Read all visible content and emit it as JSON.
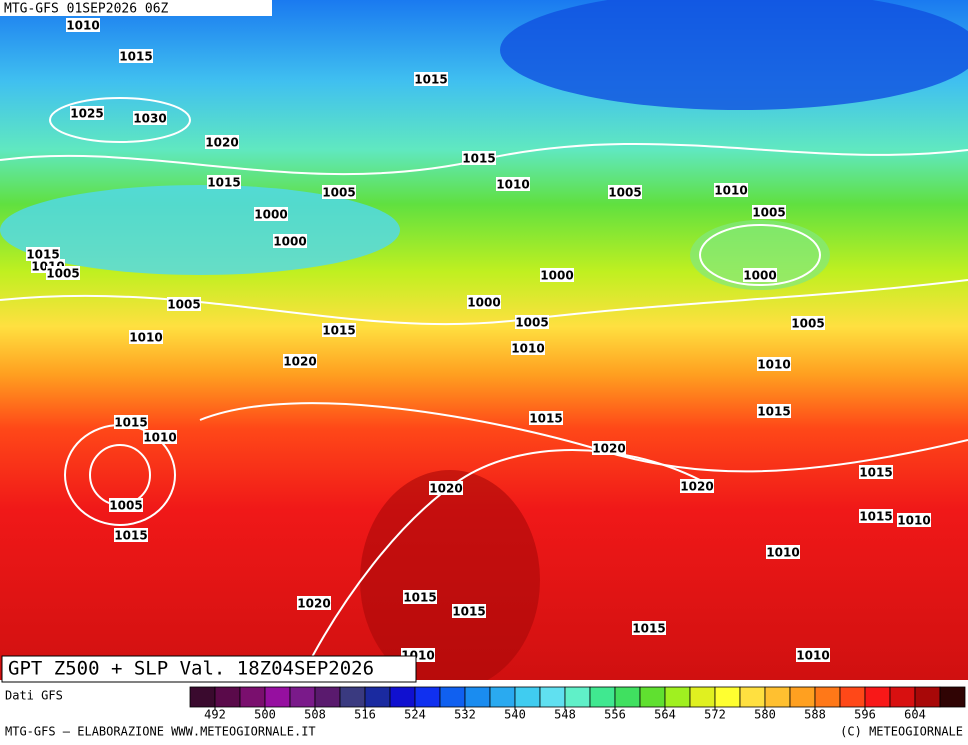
{
  "header": {
    "run": "MTG-GFS 01SEP2026 06Z"
  },
  "isobar_labels": [
    "1010",
    "1015",
    "1015",
    "1025",
    "1030",
    "1020",
    "1015",
    "1015",
    "1010",
    "1005",
    "1005",
    "1010",
    "1000",
    "1005",
    "1000",
    "1015",
    "1010",
    "1005",
    "1000",
    "1000",
    "1005",
    "1000",
    "1005",
    "1015",
    "1005",
    "1010",
    "1010",
    "1020",
    "1010",
    "1015",
    "1015",
    "1015",
    "1010",
    "1020",
    "1015",
    "1020",
    "1020",
    "1005",
    "1015",
    "1010",
    "1015",
    "1010",
    "1020",
    "1015",
    "1015",
    "1015",
    "1010",
    "1010"
  ],
  "title": "GPT Z500 + SLP Val. 18Z04SEP2026",
  "source": "Dati GFS",
  "colorbar": {
    "range": [
      488,
      612
    ],
    "ticks": [
      492,
      500,
      508,
      516,
      524,
      532,
      540,
      548,
      556,
      564,
      572,
      580,
      588,
      596,
      604
    ],
    "colors": [
      "#3a0a2e",
      "#5a0a4a",
      "#7a0f6e",
      "#960fa0",
      "#7a1a8a",
      "#5a1a6e",
      "#3a3a80",
      "#1a2aa0",
      "#1010d0",
      "#1030f0",
      "#1060f0",
      "#1a8cf0",
      "#2aaaf0",
      "#40ccf0",
      "#60e0f0",
      "#60f0c8",
      "#40e890",
      "#40e060",
      "#60e030",
      "#a0f020",
      "#e0f020",
      "#ffff30",
      "#ffe040",
      "#ffc030",
      "#ffa020",
      "#ff7818",
      "#ff4818",
      "#f81818",
      "#d81010",
      "#a80808",
      "#300404"
    ]
  },
  "footer": {
    "left": "MTG-GFS — ELABORAZIONE WWW.METEOGIORNALE.IT",
    "right": "(C) METEOGIORNALE"
  }
}
